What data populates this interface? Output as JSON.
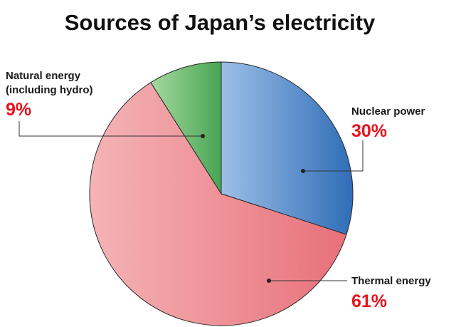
{
  "chart_data": {
    "type": "pie",
    "title": "Sources of Japan’s electricity",
    "slices": [
      {
        "label": "Nuclear power",
        "value": 30,
        "value_label": "30%",
        "color": "#4a7fc7"
      },
      {
        "label": "Thermal energy",
        "value": 61,
        "value_label": "61%",
        "color": "#ec8c8f"
      },
      {
        "label": "Natural energy (including hydro)",
        "label_lines": [
          "Natural energy",
          "(including hydro)"
        ],
        "value": 9,
        "value_label": "9%",
        "color": "#70bd70"
      }
    ],
    "start_angle": "12 o'clock, clockwise",
    "label_color": "#e8121c",
    "legend": "none (labels next to slices)"
  }
}
